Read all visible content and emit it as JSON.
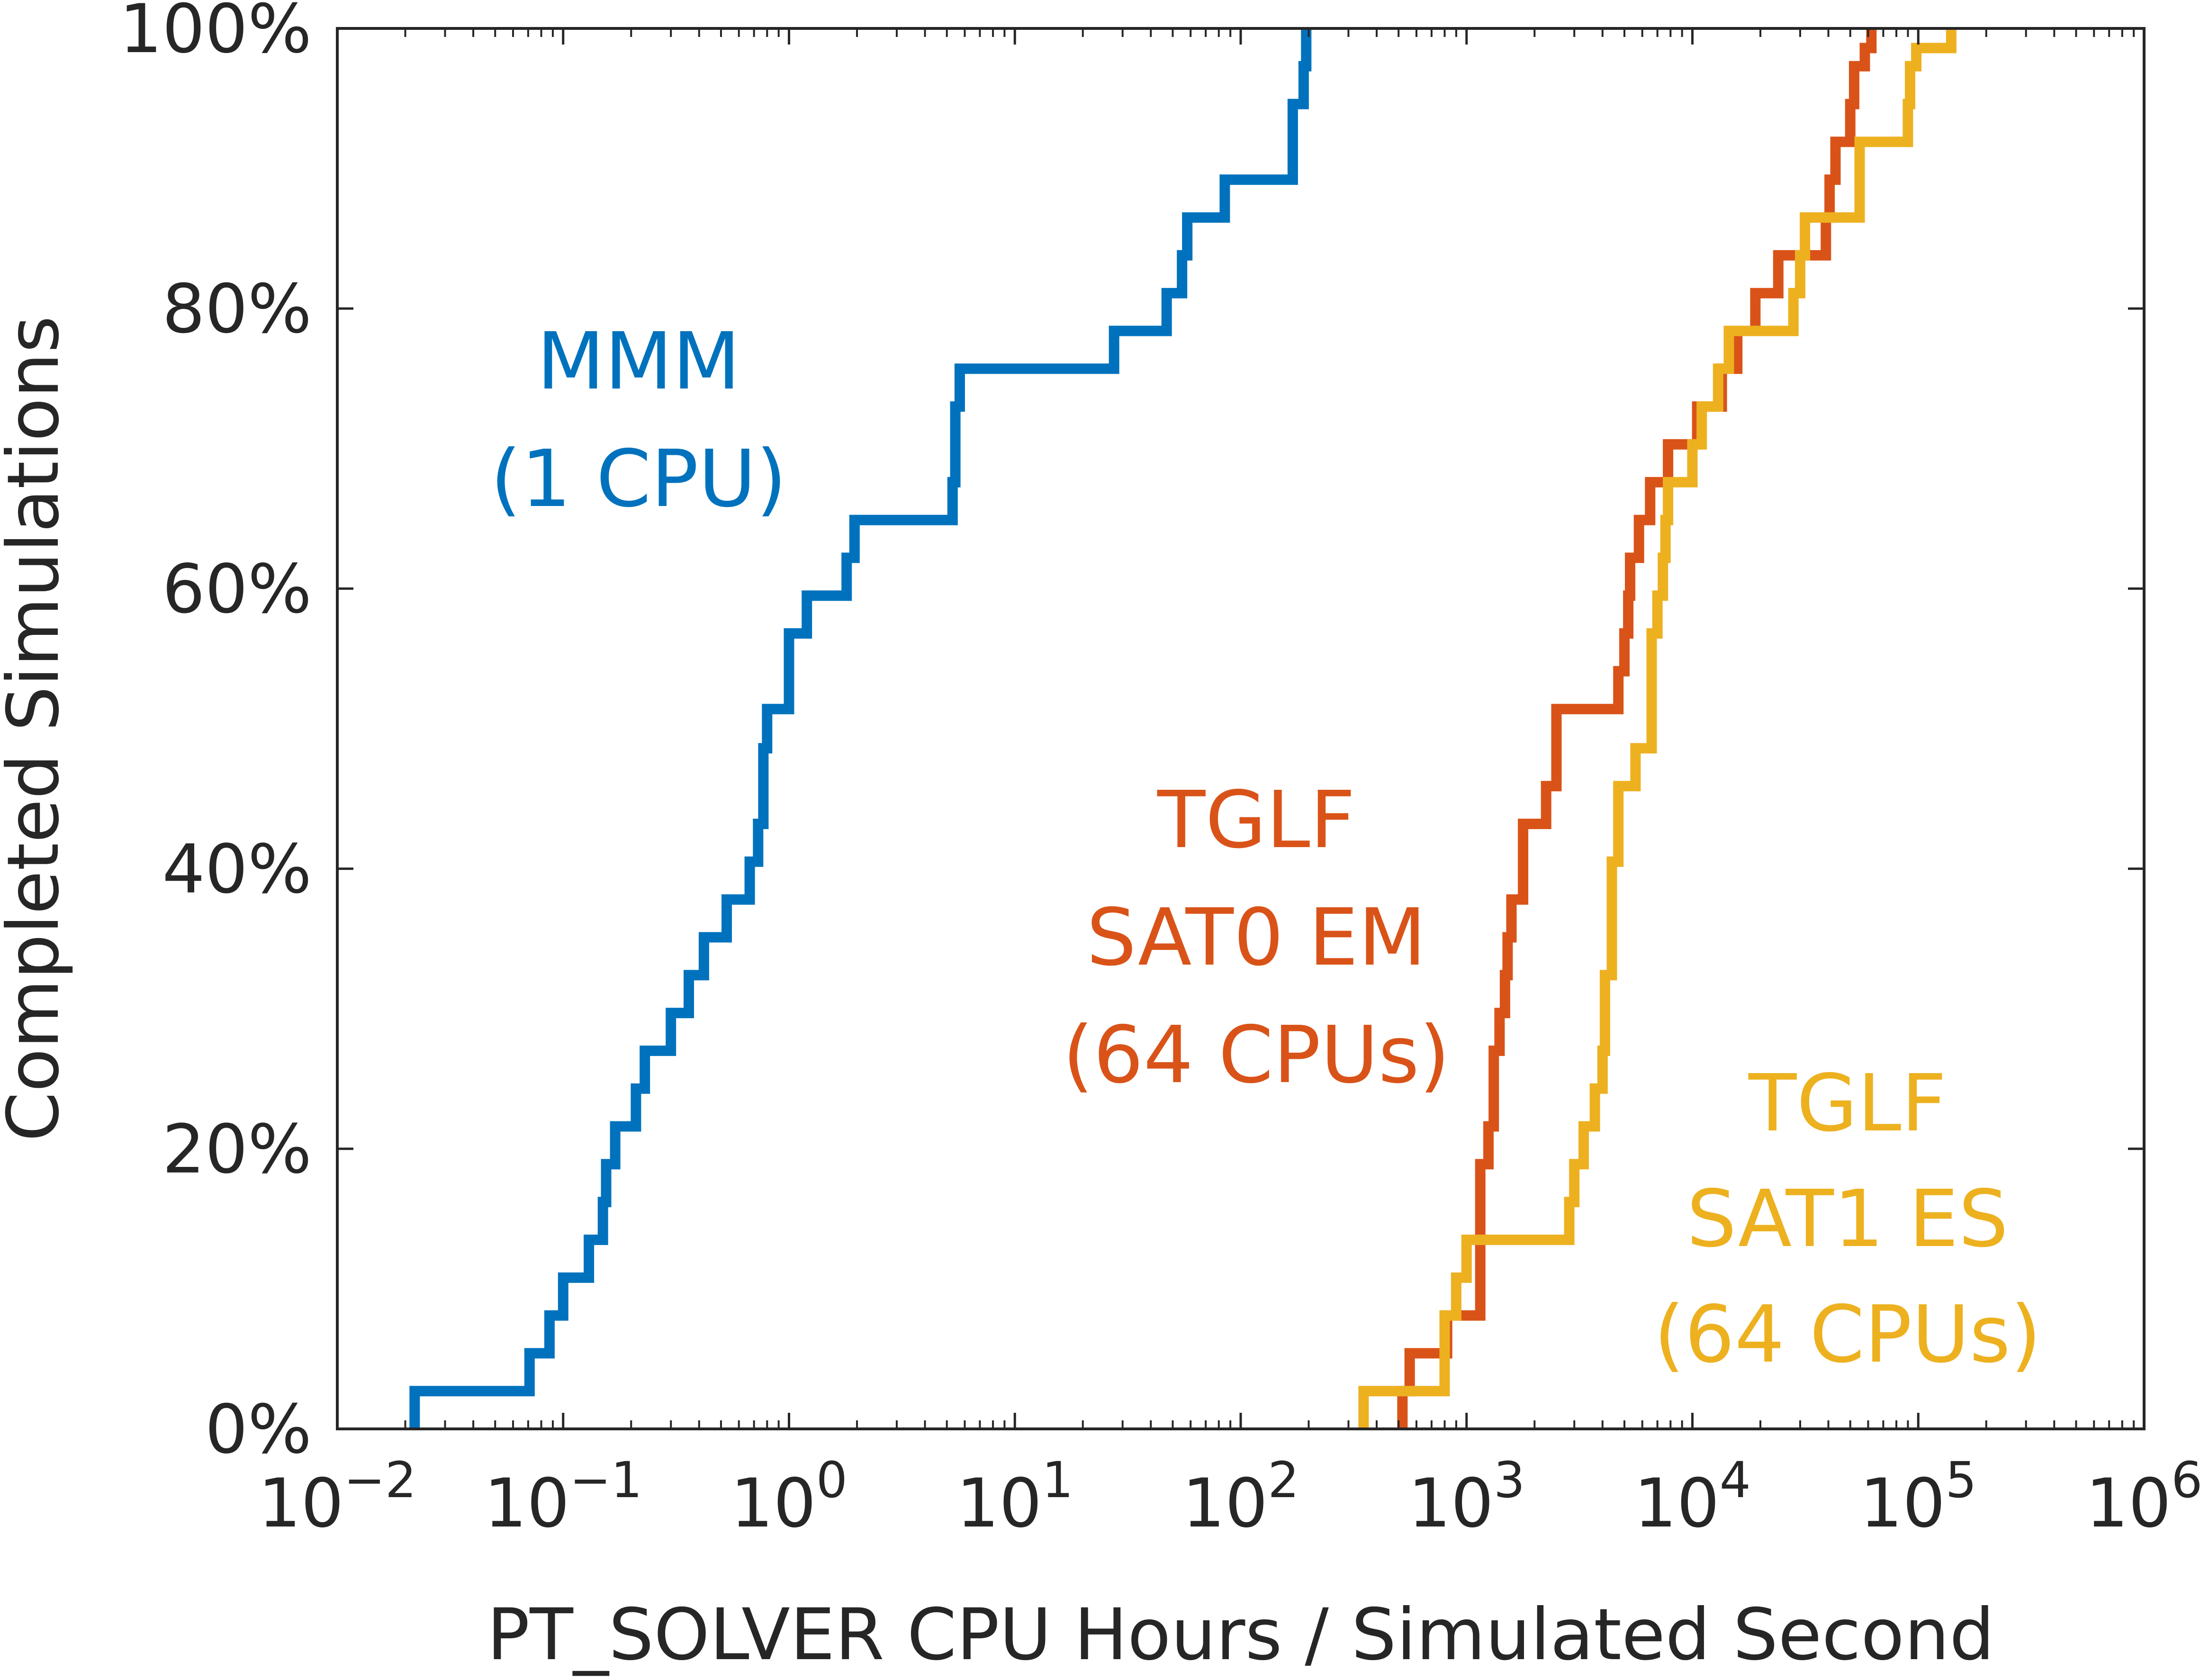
{
  "chart_data": {
    "type": "line",
    "subtype": "step-cdf",
    "title": "",
    "xlabel": "PT_SOLVER CPU Hours / Simulated Second",
    "ylabel": "Completed Simulations",
    "xscale": "log",
    "xlim": [
      0.01,
      1000000
    ],
    "ylim": [
      0,
      100
    ],
    "xticks": [
      {
        "value": 0.01,
        "base": "10",
        "exp": "−2"
      },
      {
        "value": 0.1,
        "base": "10",
        "exp": "−1"
      },
      {
        "value": 1,
        "base": "10",
        "exp": "0"
      },
      {
        "value": 10,
        "base": "10",
        "exp": "1"
      },
      {
        "value": 100,
        "base": "10",
        "exp": "2"
      },
      {
        "value": 1000,
        "base": "10",
        "exp": "3"
      },
      {
        "value": 10000,
        "base": "10",
        "exp": "4"
      },
      {
        "value": 100000,
        "base": "10",
        "exp": "5"
      },
      {
        "value": 1000000,
        "base": "10",
        "exp": "6"
      }
    ],
    "yticks": [
      {
        "value": 0,
        "label": "0%"
      },
      {
        "value": 20,
        "label": "20%"
      },
      {
        "value": 40,
        "label": "40%"
      },
      {
        "value": 60,
        "label": "60%"
      },
      {
        "value": 80,
        "label": "80%"
      },
      {
        "value": 100,
        "label": "100%"
      }
    ],
    "series": [
      {
        "name": "MMM (1 CPU)",
        "label_lines": [
          "MMM",
          "(1 CPU)"
        ],
        "color": "#0072BD",
        "x": [
          0.022,
          0.071,
          0.087,
          0.1,
          0.13,
          0.15,
          0.155,
          0.17,
          0.21,
          0.23,
          0.3,
          0.36,
          0.42,
          0.53,
          0.67,
          0.73,
          0.77,
          0.8,
          1.0,
          1.2,
          1.8,
          1.95,
          5.3,
          5.45,
          5.7,
          27.5,
          47,
          55,
          58,
          85,
          170,
          190,
          195
        ],
        "y": [
          2.7,
          5.4,
          8.1,
          10.8,
          13.5,
          16.2,
          18.9,
          21.6,
          24.3,
          27.0,
          29.7,
          32.4,
          35.1,
          37.8,
          40.5,
          43.2,
          48.6,
          51.4,
          56.8,
          59.5,
          62.2,
          64.9,
          67.6,
          73.0,
          75.7,
          78.4,
          81.1,
          83.8,
          86.5,
          89.2,
          94.6,
          97.3,
          100.0
        ]
      },
      {
        "name": "TGLF SAT0 EM (64 CPUs)",
        "label_lines": [
          "TGLF",
          "SAT0 EM",
          "(64 CPUs)"
        ],
        "color": "#D95319",
        "x": [
          520,
          560,
          820,
          1150,
          1250,
          1320,
          1400,
          1480,
          1520,
          1580,
          1780,
          2250,
          2500,
          4700,
          5000,
          5200,
          5300,
          5800,
          6500,
          7800,
          10500,
          13500,
          15800,
          19000,
          24000,
          39000,
          40500,
          43000,
          50000,
          52000,
          58000,
          62000
        ],
        "y": [
          2.7,
          5.4,
          8.1,
          18.9,
          21.6,
          27.0,
          29.7,
          32.4,
          35.1,
          37.8,
          43.2,
          45.9,
          51.4,
          54.1,
          56.8,
          59.5,
          62.2,
          64.9,
          67.6,
          70.3,
          73.0,
          75.7,
          78.4,
          81.1,
          83.8,
          86.5,
          89.2,
          91.9,
          94.6,
          97.3,
          98.6,
          100.0
        ]
      },
      {
        "name": "TGLF SAT1 ES (64 CPUs)",
        "label_lines": [
          "TGLF",
          "SAT1 ES",
          "(64 CPUs)"
        ],
        "color": "#EDB120",
        "x": [
          350,
          800,
          900,
          1000,
          2850,
          3000,
          3300,
          3700,
          4000,
          4100,
          4400,
          4700,
          5600,
          6600,
          7000,
          7400,
          7600,
          7800,
          10000,
          11000,
          13000,
          14500,
          28000,
          30000,
          31500,
          55000,
          90000,
          92000,
          98000,
          140000
        ],
        "y": [
          2.7,
          8.1,
          10.8,
          13.5,
          16.2,
          18.9,
          21.6,
          24.3,
          27.0,
          32.4,
          40.5,
          45.9,
          48.6,
          56.8,
          59.5,
          62.2,
          64.9,
          67.6,
          70.3,
          73.0,
          75.7,
          78.4,
          81.1,
          83.8,
          86.5,
          91.9,
          94.6,
          97.3,
          98.6,
          100.0
        ]
      }
    ]
  }
}
